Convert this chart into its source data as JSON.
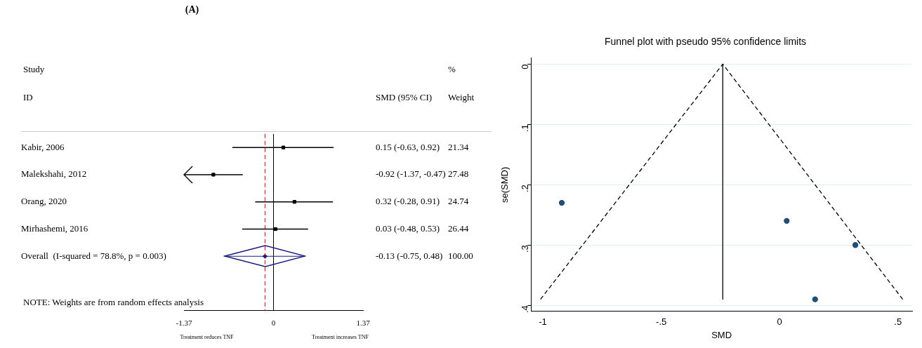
{
  "chart_data": [
    {
      "type": "scatter",
      "title": "(A)",
      "orientation": "horizontal",
      "categories": [
        "Kabir, 2006",
        "Malekshahi, 2012",
        "Orang, 2020",
        "Mirhashemi, 2016",
        "Overall  (I-squared = 78.8%, p = 0.003)"
      ],
      "series": [
        {
          "color": "#000000",
          "marker": "square",
          "values": [
            0.15,
            -0.92,
            0.32,
            0.03,
            null
          ],
          "errors": [
            [
              -0.63,
              0.92
            ],
            [
              -1.37,
              -0.47
            ],
            [
              -0.28,
              0.91
            ],
            [
              -0.48,
              0.53
            ],
            null
          ]
        },
        {
          "color": "#1a1a80",
          "marker": "diamond",
          "values": [
            null,
            null,
            null,
            null,
            -0.13
          ],
          "errors": [
            null,
            null,
            null,
            null,
            [
              -0.75,
              0.48
            ]
          ]
        }
      ],
      "xlim": [
        -1.37,
        1.37
      ],
      "xticks": [
        -1.37,
        0,
        1.37
      ],
      "grid": false,
      "legend": false,
      "ref_lines": [
        {
          "axis": "x",
          "value": 0,
          "color": "#000000",
          "line_style": "solid"
        },
        {
          "axis": "x",
          "value": -0.13,
          "color": "#cc0000",
          "line_style": "dashed"
        }
      ],
      "annotations": [
        "Study",
        "ID",
        "SMD (95% CI)",
        "%",
        "Weight",
        "NOTE: Weights are from random effects analysis",
        "Treatment reduces TNF",
        "Treatment increases TNF",
        "0.15 (-0.63, 0.92)",
        "-0.92 (-1.37, -0.47)",
        "0.32 (-0.28, 0.91)",
        "0.03 (-0.48, 0.53)",
        "-0.13 (-0.75, 0.48)",
        "21.34",
        "27.48",
        "24.74",
        "26.44",
        "100.00"
      ]
    },
    {
      "type": "scatter",
      "title": "Funnel plot with pseudo 95% confidence limits",
      "xlabel": "SMD",
      "ylabel": "se(SMD)",
      "xlim": [
        -1.05,
        0.56
      ],
      "ylim": [
        0.41,
        -0.01
      ],
      "xticks": [
        -1,
        {
          "value": -0.5,
          "label": "-.5"
        },
        0,
        {
          "value": 0.5,
          "label": ".5"
        }
      ],
      "yticks": [
        0,
        {
          "value": 0.1,
          "label": ".1"
        },
        {
          "value": 0.2,
          "label": ".2"
        },
        {
          "value": 0.3,
          "label": ".3"
        },
        {
          "value": 0.4,
          "label": ".4"
        }
      ],
      "grid": "y",
      "legend": false,
      "marker": "circle",
      "series": [
        {
          "color": "#1f4e79",
          "x": [
            -0.92,
            0.03,
            0.32,
            0.15
          ],
          "values": [
            0.23,
            0.26,
            0.3,
            0.39
          ]
        },
        {
          "type": "line",
          "color": "#000000",
          "line_style": "dashed",
          "marker": "none",
          "x": [
            -1.01,
            -0.24,
            0.52
          ],
          "values": [
            0.39,
            0,
            0.39
          ]
        },
        {
          "type": "line",
          "color": "#000000",
          "line_style": "solid",
          "marker": "none",
          "x": [
            -0.24,
            -0.24
          ],
          "values": [
            0,
            0.39
          ]
        }
      ]
    }
  ]
}
